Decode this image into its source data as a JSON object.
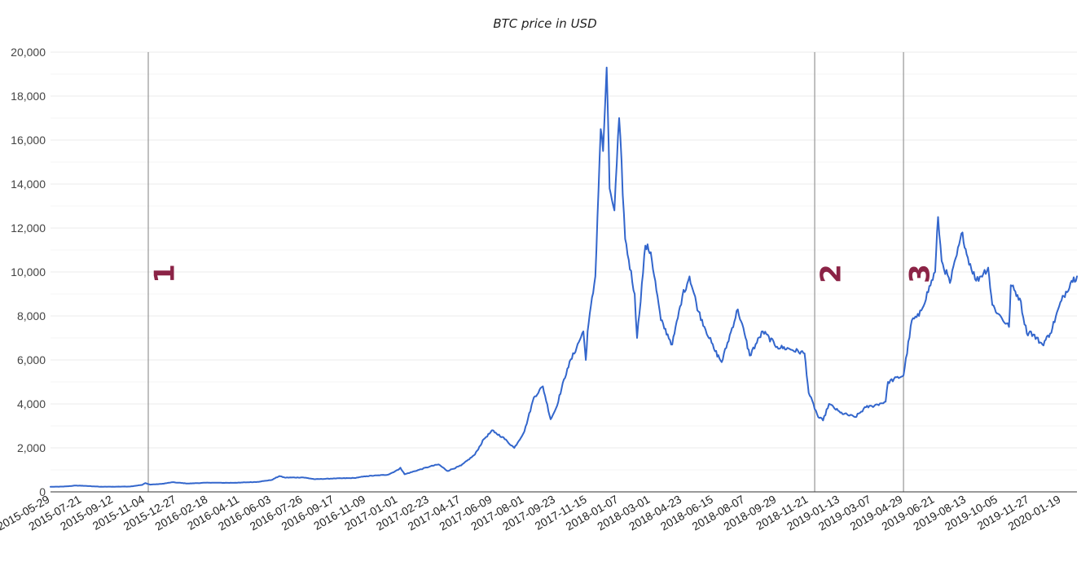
{
  "chart_data": {
    "type": "line",
    "title": "BTC price in USD",
    "xlabel": "",
    "ylabel": "",
    "x_range": [
      "2015-05-29",
      "2020-02-14"
    ],
    "ylim": [
      0,
      20000
    ],
    "y_ticks": [
      0,
      2000,
      4000,
      6000,
      8000,
      10000,
      12000,
      14000,
      16000,
      18000,
      20000
    ],
    "y_tick_labels": [
      "0",
      "2,000",
      "4,000",
      "6,000",
      "8,000",
      "10,000",
      "12,000",
      "14,000",
      "16,000",
      "18,000",
      "20,000"
    ],
    "x_tick_labels": [
      "2015-05-29",
      "2015-07-21",
      "2015-09-12",
      "2015-11-04",
      "2015-12-27",
      "2016-02-18",
      "2016-04-11",
      "2016-06-03",
      "2016-07-26",
      "2016-09-17",
      "2016-11-09",
      "2017-01-01",
      "2017-02-23",
      "2017-04-17",
      "2017-06-09",
      "2017-08-01",
      "2017-09-23",
      "2017-11-15",
      "2018-01-07",
      "2018-03-01",
      "2018-04-23",
      "2018-06-15",
      "2018-08-07",
      "2018-09-29",
      "2018-11-21",
      "2019-01-13",
      "2019-03-07",
      "2019-04-29",
      "2019-06-21",
      "2019-08-13",
      "2019-10-05",
      "2019-11-27",
      "2020-01-19"
    ],
    "grid": true,
    "legend": "none",
    "series": [
      {
        "color": "#3366cc",
        "points": [
          [
            "2015-05-29",
            230
          ],
          [
            "2015-06-20",
            240
          ],
          [
            "2015-07-10",
            285
          ],
          [
            "2015-07-21",
            280
          ],
          [
            "2015-08-20",
            235
          ],
          [
            "2015-09-12",
            235
          ],
          [
            "2015-10-10",
            245
          ],
          [
            "2015-10-30",
            320
          ],
          [
            "2015-11-04",
            400
          ],
          [
            "2015-11-12",
            330
          ],
          [
            "2015-12-01",
            360
          ],
          [
            "2015-12-20",
            440
          ],
          [
            "2015-12-27",
            420
          ],
          [
            "2016-01-15",
            380
          ],
          [
            "2016-02-18",
            420
          ],
          [
            "2016-03-20",
            410
          ],
          [
            "2016-04-11",
            420
          ],
          [
            "2016-05-10",
            455
          ],
          [
            "2016-06-03",
            540
          ],
          [
            "2016-06-16",
            720
          ],
          [
            "2016-06-25",
            650
          ],
          [
            "2016-07-26",
            655
          ],
          [
            "2016-08-15",
            575
          ],
          [
            "2016-09-17",
            610
          ],
          [
            "2016-10-20",
            630
          ],
          [
            "2016-11-09",
            715
          ],
          [
            "2016-12-15",
            780
          ],
          [
            "2017-01-01",
            1000
          ],
          [
            "2017-01-05",
            1100
          ],
          [
            "2017-01-12",
            800
          ],
          [
            "2017-02-23",
            1150
          ],
          [
            "2017-03-10",
            1250
          ],
          [
            "2017-03-25",
            950
          ],
          [
            "2017-04-17",
            1200
          ],
          [
            "2017-05-10",
            1700
          ],
          [
            "2017-05-25",
            2400
          ],
          [
            "2017-06-09",
            2800
          ],
          [
            "2017-06-12",
            2700
          ],
          [
            "2017-06-25",
            2500
          ],
          [
            "2017-07-15",
            2000
          ],
          [
            "2017-08-01",
            2750
          ],
          [
            "2017-08-17",
            4300
          ],
          [
            "2017-09-01",
            4800
          ],
          [
            "2017-09-14",
            3300
          ],
          [
            "2017-09-23",
            3800
          ],
          [
            "2017-10-12",
            5600
          ],
          [
            "2017-11-08",
            7300
          ],
          [
            "2017-11-12",
            6000
          ],
          [
            "2017-11-15",
            7300
          ],
          [
            "2017-11-28",
            9800
          ],
          [
            "2017-12-07",
            16500
          ],
          [
            "2017-12-11",
            15500
          ],
          [
            "2017-12-17",
            19300
          ],
          [
            "2017-12-22",
            13800
          ],
          [
            "2017-12-30",
            12800
          ],
          [
            "2018-01-07",
            17000
          ],
          [
            "2018-01-17",
            11500
          ],
          [
            "2018-02-02",
            9000
          ],
          [
            "2018-02-06",
            7000
          ],
          [
            "2018-02-20",
            11200
          ],
          [
            "2018-03-01",
            10900
          ],
          [
            "2018-03-18",
            7800
          ],
          [
            "2018-04-06",
            6700
          ],
          [
            "2018-04-23",
            8900
          ],
          [
            "2018-05-05",
            9800
          ],
          [
            "2018-05-20",
            8200
          ],
          [
            "2018-06-15",
            6500
          ],
          [
            "2018-06-28",
            5900
          ],
          [
            "2018-07-25",
            8300
          ],
          [
            "2018-08-07",
            7000
          ],
          [
            "2018-08-14",
            6200
          ],
          [
            "2018-09-05",
            7300
          ],
          [
            "2018-09-29",
            6600
          ],
          [
            "2018-10-20",
            6500
          ],
          [
            "2018-11-14",
            6300
          ],
          [
            "2018-11-21",
            4500
          ],
          [
            "2018-12-07",
            3400
          ],
          [
            "2018-12-15",
            3250
          ],
          [
            "2018-12-25",
            4000
          ],
          [
            "2019-01-13",
            3600
          ],
          [
            "2019-02-07",
            3400
          ],
          [
            "2019-02-25",
            3850
          ],
          [
            "2019-03-07",
            3900
          ],
          [
            "2019-03-30",
            4100
          ],
          [
            "2019-04-03",
            5000
          ],
          [
            "2019-04-29",
            5300
          ],
          [
            "2019-05-13",
            7800
          ],
          [
            "2019-05-25",
            8000
          ],
          [
            "2019-06-21",
            10000
          ],
          [
            "2019-06-26",
            12500
          ],
          [
            "2019-07-02",
            10500
          ],
          [
            "2019-07-16",
            9500
          ],
          [
            "2019-08-06",
            11800
          ],
          [
            "2019-08-13",
            10800
          ],
          [
            "2019-08-29",
            9600
          ],
          [
            "2019-09-18",
            10200
          ],
          [
            "2019-09-25",
            8500
          ],
          [
            "2019-10-05",
            8100
          ],
          [
            "2019-10-23",
            7500
          ],
          [
            "2019-10-26",
            9400
          ],
          [
            "2019-11-10",
            8800
          ],
          [
            "2019-11-22",
            7200
          ],
          [
            "2019-11-27",
            7300
          ],
          [
            "2019-12-18",
            6700
          ],
          [
            "2019-12-31",
            7200
          ],
          [
            "2020-01-19",
            8700
          ],
          [
            "2020-02-05",
            9600
          ],
          [
            "2020-02-14",
            9800
          ]
        ]
      }
    ],
    "annotations": [
      {
        "label": "1",
        "x": "2015-11-09",
        "color": "#8b2346"
      },
      {
        "label": "2",
        "x": "2018-12-01",
        "color": "#8b2346"
      },
      {
        "label": "3",
        "x": "2019-04-29",
        "color": "#8b2346"
      }
    ]
  }
}
